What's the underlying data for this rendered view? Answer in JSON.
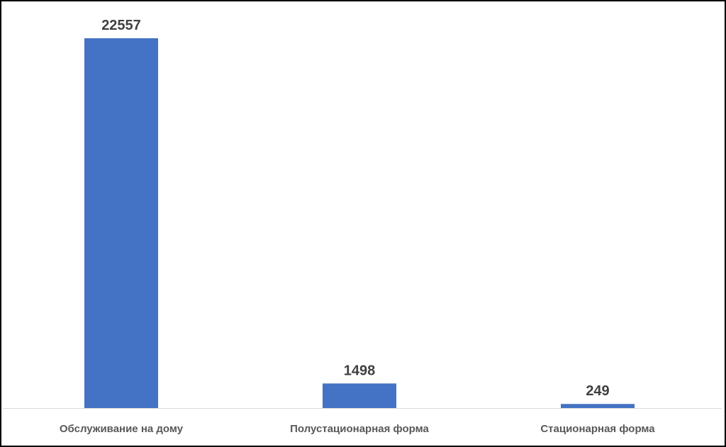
{
  "chart_data": {
    "type": "bar",
    "categories": [
      "Обслуживание на дому",
      "Полустационарная форма",
      "Стационарная форма"
    ],
    "values": [
      22557,
      1498,
      249
    ],
    "title": "",
    "xlabel": "",
    "ylabel": "",
    "ylim": [
      0,
      22557
    ],
    "grid": false,
    "legend": "none",
    "data_labels": true,
    "colors": {
      "bar": "#4472C4",
      "axis": "#D9D9D9",
      "label": "#404040",
      "category": "#595959"
    }
  }
}
